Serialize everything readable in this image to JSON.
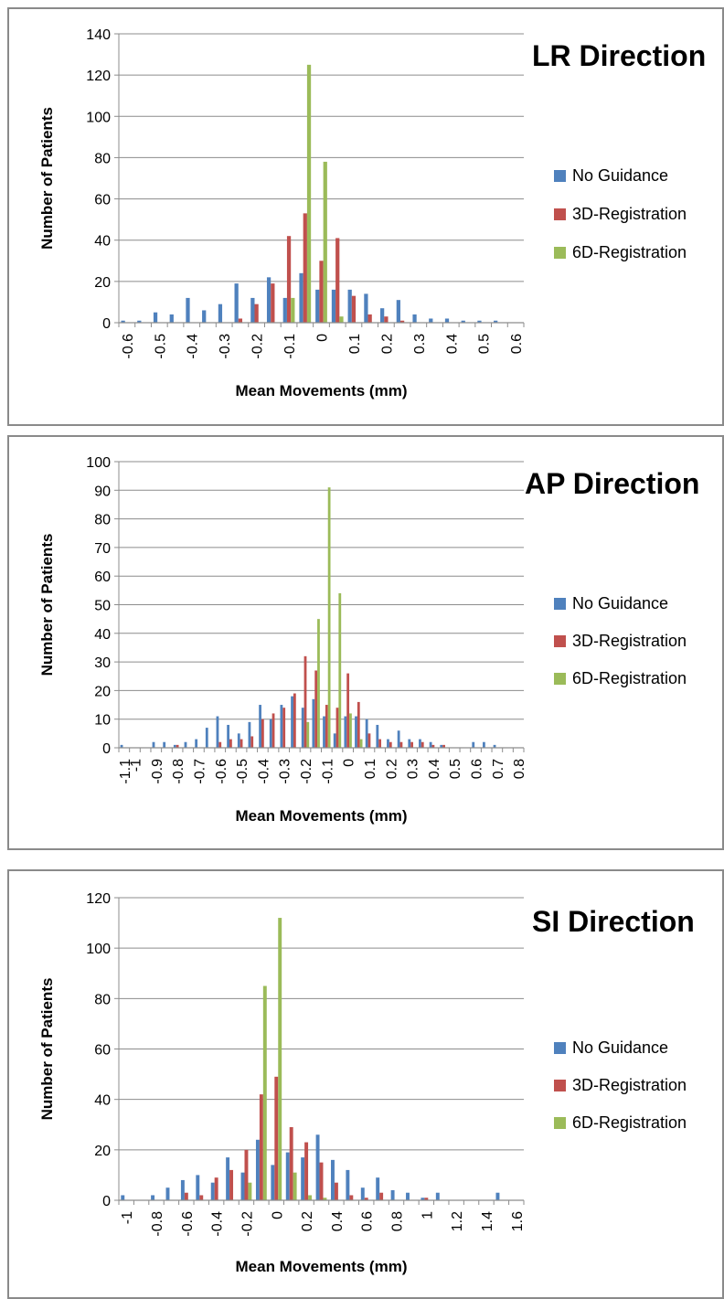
{
  "colors": {
    "no_guidance": "#4f81bd",
    "reg3d": "#c0504d",
    "reg6d": "#9bbb59",
    "grid": "#8c8c8c"
  },
  "chart_data": [
    {
      "type": "bar",
      "title": "LR Direction",
      "xlabel": "Mean Movements (mm)",
      "ylabel": "Number of Patients",
      "ylim": [
        0,
        140
      ],
      "yticks": [
        "0",
        "20",
        "40",
        "60",
        "80",
        "100",
        "120",
        "140"
      ],
      "ytick_values": [
        0,
        20,
        40,
        60,
        80,
        100,
        120,
        140
      ],
      "categories": [
        -0.6,
        -0.55,
        -0.5,
        -0.45,
        -0.4,
        -0.35,
        -0.3,
        -0.25,
        -0.2,
        -0.15,
        -0.1,
        -0.05,
        0,
        0.05,
        0.1,
        0.15,
        0.2,
        0.25,
        0.3,
        0.35,
        0.4,
        0.45,
        0.5,
        0.55,
        0.6
      ],
      "xtick_labels": [
        "-0.6",
        "",
        "-0.5",
        "",
        "-0.4",
        "",
        "-0.3",
        "",
        "-0.2",
        "",
        "-0.1",
        "",
        "0",
        "",
        "0.1",
        "",
        "0.2",
        "",
        "0.3",
        "",
        "0.4",
        "",
        "0.5",
        "",
        "0.6"
      ],
      "legend_position": "right",
      "series": [
        {
          "name": "No Guidance",
          "values": [
            1,
            1,
            5,
            4,
            12,
            6,
            9,
            19,
            12,
            22,
            12,
            24,
            16,
            16,
            16,
            14,
            7,
            11,
            4,
            2,
            2,
            1,
            1,
            1,
            0
          ]
        },
        {
          "name": "3D-Registration",
          "values": [
            0,
            0,
            0,
            0,
            0,
            0,
            0,
            2,
            9,
            19,
            42,
            53,
            30,
            41,
            13,
            4,
            3,
            1,
            0,
            0,
            0,
            0,
            0,
            0,
            0
          ]
        },
        {
          "name": "6D-Registration",
          "values": [
            0,
            0,
            0,
            0,
            0,
            0,
            0,
            0,
            0,
            0,
            12,
            125,
            78,
            3,
            0,
            0,
            0,
            0,
            0,
            0,
            0,
            0,
            0,
            0,
            0
          ]
        }
      ]
    },
    {
      "type": "bar",
      "title": "AP Direction",
      "xlabel": "Mean Movements (mm)",
      "ylabel": "Number of Patients",
      "ylim": [
        0,
        100
      ],
      "yticks": [
        "0",
        "10",
        "20",
        "30",
        "40",
        "50",
        "60",
        "70",
        "80",
        "90",
        "100"
      ],
      "ytick_values": [
        0,
        10,
        20,
        30,
        40,
        50,
        60,
        70,
        80,
        90,
        100
      ],
      "categories": [
        -1.1,
        -1,
        -0.95,
        -0.9,
        -0.85,
        -0.8,
        -0.75,
        -0.7,
        -0.65,
        -0.6,
        -0.55,
        -0.5,
        -0.45,
        -0.4,
        -0.35,
        -0.3,
        -0.25,
        -0.2,
        -0.15,
        -0.1,
        -0.05,
        0,
        0.05,
        0.1,
        0.15,
        0.2,
        0.25,
        0.3,
        0.35,
        0.4,
        0.45,
        0.5,
        0.55,
        0.6,
        0.65,
        0.7,
        0.75,
        0.8
      ],
      "xtick_labels": [
        "-1.1",
        "-1",
        "",
        "-0.9",
        "",
        "-0.8",
        "",
        "-0.7",
        "",
        "-0.6",
        "",
        "-0.5",
        "",
        "-0.4",
        "",
        "-0.3",
        "",
        "-0.2",
        "",
        "-0.1",
        "",
        "0",
        "",
        "0.1",
        "",
        "0.2",
        "",
        "0.3",
        "",
        "0.4",
        "",
        "0.5",
        "",
        "0.6",
        "",
        "0.7",
        "",
        "0.8"
      ],
      "legend_position": "right",
      "series": [
        {
          "name": "No Guidance",
          "values": [
            1,
            0,
            0,
            2,
            2,
            1,
            2,
            3,
            7,
            11,
            8,
            5,
            9,
            15,
            10,
            15,
            18,
            14,
            17,
            11,
            5,
            11,
            11,
            10,
            8,
            3,
            6,
            3,
            3,
            2,
            1,
            0,
            0,
            2,
            2,
            1,
            0,
            0
          ]
        },
        {
          "name": "3D-Registration",
          "values": [
            0,
            0,
            0,
            0,
            0,
            1,
            0,
            0,
            0,
            2,
            3,
            3,
            4,
            10,
            12,
            14,
            19,
            32,
            27,
            15,
            14,
            26,
            16,
            5,
            3,
            2,
            2,
            2,
            2,
            1,
            1,
            0,
            0,
            0,
            0,
            0,
            0,
            0
          ]
        },
        {
          "name": "6D-Registration",
          "values": [
            0,
            0,
            0,
            0,
            0,
            0,
            0,
            0,
            0,
            0,
            0,
            0,
            0,
            0,
            0,
            0,
            0,
            9,
            45,
            91,
            54,
            12,
            3,
            0,
            0,
            0,
            0,
            0,
            0,
            0,
            0,
            0,
            0,
            0,
            0,
            0,
            0,
            0
          ]
        }
      ]
    },
    {
      "type": "bar",
      "title": "SI Direction",
      "xlabel": "Mean Movements (mm)",
      "ylabel": "Number of Patients",
      "ylim": [
        0,
        120
      ],
      "yticks": [
        "0",
        "20",
        "40",
        "60",
        "80",
        "100",
        "120"
      ],
      "ytick_values": [
        0,
        20,
        40,
        60,
        80,
        100,
        120
      ],
      "categories": [
        -1,
        -0.9,
        -0.8,
        -0.7,
        -0.6,
        -0.5,
        -0.4,
        -0.3,
        -0.2,
        -0.1,
        0,
        0.1,
        0.2,
        0.3,
        0.4,
        0.5,
        0.6,
        0.7,
        0.8,
        0.9,
        1,
        1.1,
        1.2,
        1.3,
        1.4,
        1.5,
        1.6
      ],
      "xtick_labels": [
        "-1",
        "",
        "-0.8",
        "",
        "-0.6",
        "",
        "-0.4",
        "",
        "-0.2",
        "",
        "0",
        "",
        "0.2",
        "",
        "0.4",
        "",
        "0.6",
        "",
        "0.8",
        "",
        "1",
        "",
        "1.2",
        "",
        "1.4",
        "",
        "1.6"
      ],
      "legend_position": "right",
      "series": [
        {
          "name": "No Guidance",
          "values": [
            2,
            0,
            2,
            5,
            8,
            10,
            7,
            17,
            11,
            24,
            14,
            19,
            17,
            26,
            16,
            12,
            5,
            9,
            4,
            3,
            1,
            3,
            0,
            0,
            0,
            3,
            0
          ]
        },
        {
          "name": "3D-Registration",
          "values": [
            0,
            0,
            0,
            0,
            3,
            2,
            9,
            12,
            20,
            42,
            49,
            29,
            23,
            15,
            7,
            2,
            1,
            3,
            0,
            0,
            1,
            0,
            0,
            0,
            0,
            0,
            0
          ]
        },
        {
          "name": "6D-Registration",
          "values": [
            0,
            0,
            0,
            0,
            0,
            0,
            0,
            0,
            7,
            85,
            112,
            11,
            2,
            1,
            0,
            0,
            0,
            0,
            0,
            0,
            0,
            0,
            0,
            0,
            0,
            0,
            0
          ]
        }
      ]
    }
  ]
}
